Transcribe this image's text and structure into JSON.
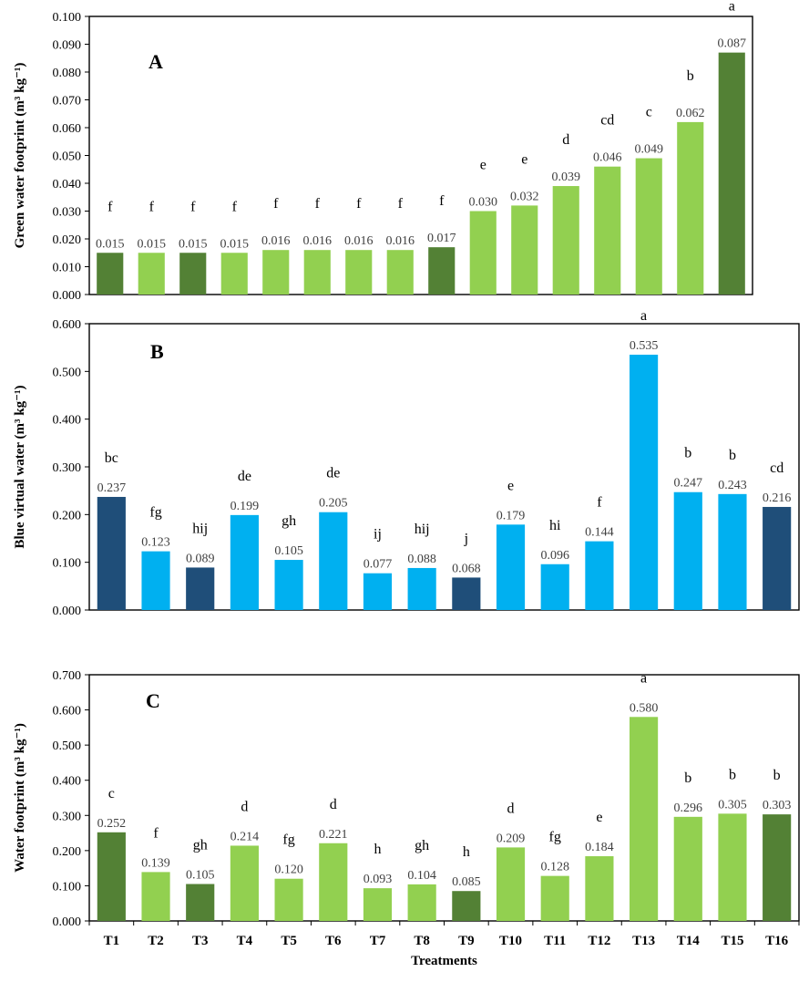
{
  "colors": {
    "green_dark": "#538135",
    "green_light": "#92d050",
    "blue_dark": "#1f4e79",
    "blue_light": "#00b0f0",
    "axis": "#000000",
    "text": "#000000",
    "value_label": "#404040"
  },
  "chart_data": [
    {
      "type": "bar",
      "panel_label": "A",
      "ylabel": "Green water footprint (m³ kg⁻¹)",
      "ylim": [
        0,
        0.1
      ],
      "yticks": [
        "0.000",
        "0.010",
        "0.020",
        "0.030",
        "0.040",
        "0.050",
        "0.060",
        "0.070",
        "0.080",
        "0.090",
        "0.100"
      ],
      "categories": [
        "T1",
        "T2",
        "T3",
        "T4",
        "T5",
        "T6",
        "T7",
        "T8",
        "T9",
        "T10",
        "T11",
        "T12",
        "T13",
        "T14",
        "T15",
        "T16"
      ],
      "values": [
        0.015,
        0.015,
        0.015,
        0.015,
        0.016,
        0.016,
        0.016,
        0.016,
        0.017,
        0.03,
        0.032,
        0.039,
        0.046,
        0.049,
        0.062,
        0.087
      ],
      "value_labels": [
        "0.015",
        "0.015",
        "0.015",
        "0.015",
        "0.016",
        "0.016",
        "0.016",
        "0.016",
        "0.017",
        "0.030",
        "0.032",
        "0.039",
        "0.046",
        "0.049",
        "0.062",
        "0.087"
      ],
      "letters": [
        "f",
        "f",
        "f",
        "f",
        "f",
        "f",
        "f",
        "f",
        "f",
        "e",
        "e",
        "d",
        "cd",
        "c",
        "b",
        "a"
      ],
      "bar_colors": [
        "#538135",
        "#92d050",
        "#538135",
        "#92d050",
        "#92d050",
        "#92d050",
        "#92d050",
        "#92d050",
        "#538135",
        "#92d050",
        "#92d050",
        "#92d050",
        "#92d050",
        "#92d050",
        "#92d050",
        "#538135"
      ],
      "grid": false
    },
    {
      "type": "bar",
      "panel_label": "B",
      "ylabel": "Blue virtual water (m³ kg⁻¹)",
      "ylim": [
        0,
        0.6
      ],
      "yticks": [
        "0.000",
        "0.100",
        "0.200",
        "0.300",
        "0.400",
        "0.500",
        "0.600"
      ],
      "categories": [
        "T1",
        "T2",
        "T3",
        "T4",
        "T5",
        "T6",
        "T7",
        "T8",
        "T9",
        "T10",
        "T11",
        "T12",
        "T13",
        "T14",
        "T15",
        "T16"
      ],
      "values": [
        0.237,
        0.123,
        0.089,
        0.199,
        0.105,
        0.205,
        0.077,
        0.088,
        0.068,
        0.179,
        0.096,
        0.144,
        0.535,
        0.247,
        0.243,
        0.216
      ],
      "value_labels": [
        "0.237",
        "0.123",
        "0.089",
        "0.199",
        "0.105",
        "0.205",
        "0.077",
        "0.088",
        "0.068",
        "0.179",
        "0.096",
        "0.144",
        "0.535",
        "0.247",
        "0.243",
        "0.216"
      ],
      "letters": [
        "bc",
        "fg",
        "hij",
        "de",
        "gh",
        "de",
        "ij",
        "hij",
        "j",
        "e",
        "hi",
        "f",
        "a",
        "b",
        "b",
        "cd"
      ],
      "bar_colors": [
        "#1f4e79",
        "#00b0f0",
        "#1f4e79",
        "#00b0f0",
        "#00b0f0",
        "#00b0f0",
        "#00b0f0",
        "#00b0f0",
        "#1f4e79",
        "#00b0f0",
        "#00b0f0",
        "#00b0f0",
        "#00b0f0",
        "#00b0f0",
        "#00b0f0",
        "#1f4e79"
      ],
      "grid": false
    },
    {
      "type": "bar",
      "panel_label": "C",
      "ylabel": "Water footprint (m³ kg⁻¹)",
      "xlabel": "Treatments",
      "ylim": [
        0,
        0.7
      ],
      "yticks": [
        "0.000",
        "0.100",
        "0.200",
        "0.300",
        "0.400",
        "0.500",
        "0.600",
        "0.700"
      ],
      "categories": [
        "T1",
        "T2",
        "T3",
        "T4",
        "T5",
        "T6",
        "T7",
        "T8",
        "T9",
        "T10",
        "T11",
        "T12",
        "T13",
        "T14",
        "T15",
        "T16"
      ],
      "values": [
        0.252,
        0.139,
        0.105,
        0.214,
        0.12,
        0.221,
        0.093,
        0.104,
        0.085,
        0.209,
        0.128,
        0.184,
        0.58,
        0.296,
        0.305,
        0.303
      ],
      "value_labels": [
        "0.252",
        "0.139",
        "0.105",
        "0.214",
        "0.120",
        "0.221",
        "0.093",
        "0.104",
        "0.085",
        "0.209",
        "0.128",
        "0.184",
        "0.580",
        "0.296",
        "0.305",
        "0.303"
      ],
      "letters": [
        "c",
        "f",
        "gh",
        "d",
        "fg",
        "d",
        "h",
        "gh",
        "h",
        "d",
        "fg",
        "e",
        "a",
        "b",
        "b",
        "b"
      ],
      "bar_colors": [
        "#538135",
        "#92d050",
        "#538135",
        "#92d050",
        "#92d050",
        "#92d050",
        "#92d050",
        "#92d050",
        "#538135",
        "#92d050",
        "#92d050",
        "#92d050",
        "#92d050",
        "#92d050",
        "#92d050",
        "#538135"
      ],
      "grid": false
    }
  ]
}
